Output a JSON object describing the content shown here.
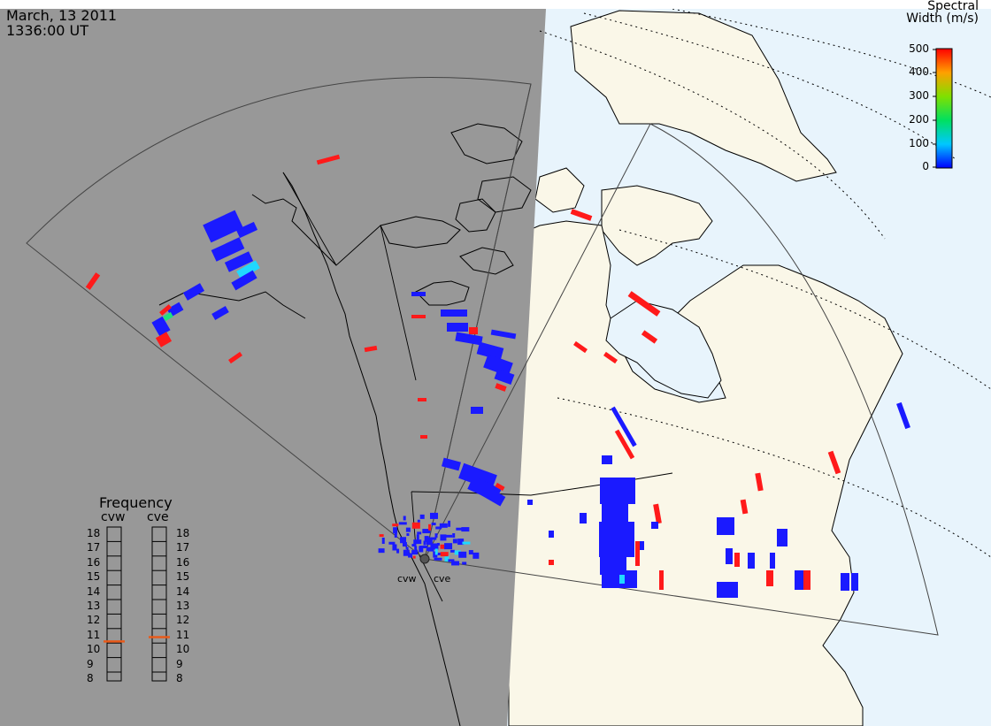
{
  "header": {
    "date": "March, 13 2011",
    "time": "1336:00 UT"
  },
  "colorbar": {
    "title_line1": "Spectral",
    "title_line2": "Width (m/s)",
    "ticks": [
      "500",
      "400",
      "300",
      "200",
      "100",
      "0"
    ]
  },
  "radars": {
    "west": "cvw",
    "east": "cve"
  },
  "frequency": {
    "title": "Frequency",
    "west_label": "cvw",
    "east_label": "cve",
    "ticks": [
      "18",
      "17",
      "16",
      "15",
      "14",
      "13",
      "12",
      "11",
      "10",
      "9",
      "8"
    ],
    "west_mhz": 10.6,
    "east_mhz": 10.9,
    "marker_color": "#e85a1a"
  },
  "colors": {
    "night": "#989898",
    "day_land": "#faf7e8",
    "day_ocean": "#e8f4fc",
    "low_width": "#1a1aff",
    "high_width": "#ff1a1a"
  }
}
